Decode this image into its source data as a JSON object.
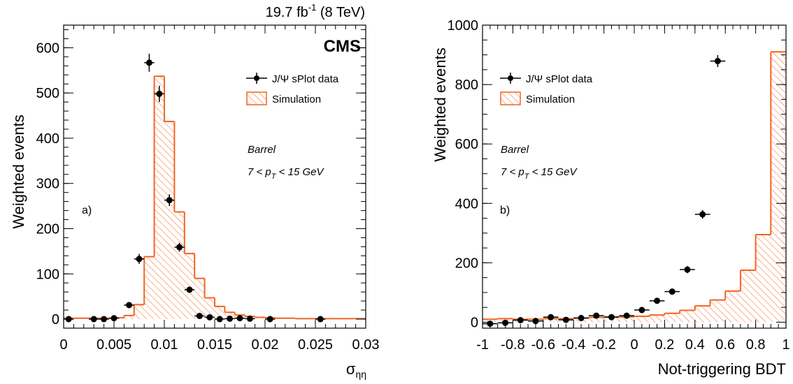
{
  "header": {
    "lumi_value": "19.7 fb",
    "lumi_exp": "-1",
    "lumi_energy": " (8 TeV)",
    "experiment": "CMS"
  },
  "colors": {
    "simulation": "#f26522",
    "data": "#000000"
  },
  "chart_data": [
    {
      "type": "histogram",
      "panel_label": "a)",
      "ylabel": "Weighted events",
      "xlabel_symbol": "σ",
      "xlabel_subscript": "ηη",
      "xlim": [
        0,
        0.03
      ],
      "ylim": [
        -20,
        650
      ],
      "xticks": [
        "0",
        "0.005",
        "0.01",
        "0.015",
        "0.02",
        "0.025",
        "0.03"
      ],
      "yticks": [
        "0",
        "100",
        "200",
        "300",
        "400",
        "500",
        "600"
      ],
      "grid": false,
      "legend_position": "top-right",
      "legend": {
        "data": "J/Ψ sPlot data",
        "simulation": "Simulation"
      },
      "annotations": {
        "region": "Barrel",
        "pt_range": "7 < p",
        "pt_sub": "T",
        "pt_rest": " < 15 GeV"
      },
      "simulation": {
        "bin_edges": [
          0,
          0.001,
          0.002,
          0.003,
          0.004,
          0.005,
          0.006,
          0.007,
          0.008,
          0.009,
          0.01,
          0.011,
          0.012,
          0.013,
          0.014,
          0.015,
          0.016,
          0.017,
          0.018,
          0.019,
          0.02,
          0.021,
          0.022,
          0.023,
          0.024,
          0.025,
          0.026,
          0.027,
          0.028,
          0.029,
          0.03
        ],
        "values": [
          2,
          2,
          2,
          2,
          2,
          3,
          8,
          32,
          138,
          537,
          437,
          237,
          145,
          90,
          47,
          28,
          15,
          9,
          6,
          4,
          3,
          2,
          2,
          1,
          1,
          1,
          1,
          1,
          1,
          1
        ]
      },
      "data_points": [
        {
          "x": 0.0005,
          "y": 0,
          "yerr": 4
        },
        {
          "x": 0.003,
          "y": 0,
          "yerr": 3
        },
        {
          "x": 0.004,
          "y": 0,
          "yerr": 3
        },
        {
          "x": 0.005,
          "y": 2,
          "yerr": 3
        },
        {
          "x": 0.0065,
          "y": 31,
          "yerr": 6
        },
        {
          "x": 0.0075,
          "y": 133,
          "yerr": 11
        },
        {
          "x": 0.0085,
          "y": 567,
          "yerr": 20
        },
        {
          "x": 0.0095,
          "y": 498,
          "yerr": 18
        },
        {
          "x": 0.0105,
          "y": 263,
          "yerr": 13
        },
        {
          "x": 0.0115,
          "y": 159,
          "yerr": 10
        },
        {
          "x": 0.0125,
          "y": 65,
          "yerr": 7
        },
        {
          "x": 0.0135,
          "y": 7,
          "yerr": 4
        },
        {
          "x": 0.0145,
          "y": 4,
          "yerr": 3
        },
        {
          "x": 0.0155,
          "y": 0,
          "yerr": 3
        },
        {
          "x": 0.0165,
          "y": 1,
          "yerr": 3
        },
        {
          "x": 0.0175,
          "y": 2,
          "yerr": 3
        },
        {
          "x": 0.0185,
          "y": 1,
          "yerr": 3
        },
        {
          "x": 0.0205,
          "y": 0,
          "yerr": 3
        },
        {
          "x": 0.0255,
          "y": 0,
          "yerr": 3
        }
      ]
    },
    {
      "type": "histogram",
      "panel_label": "b)",
      "ylabel": "Weighted events",
      "xlabel": "Not-triggering BDT",
      "xlim": [
        -1,
        1
      ],
      "ylim": [
        -20,
        1000
      ],
      "xticks": [
        "-1",
        "-0.8",
        "-0.6",
        "-0.4",
        "-0.2",
        "0",
        "0.2",
        "0.4",
        "0.6",
        "0.8",
        "1"
      ],
      "yticks": [
        "0",
        "200",
        "400",
        "600",
        "800",
        "1000"
      ],
      "grid": false,
      "legend_position": "top-left",
      "legend": {
        "data": "J/Ψ sPlot data",
        "simulation": "Simulation"
      },
      "annotations": {
        "region": "Barrel",
        "pt_range": "7 < p",
        "pt_sub": "T",
        "pt_rest": " < 15 GeV"
      },
      "simulation": {
        "bin_edges": [
          -1,
          -0.9,
          -0.8,
          -0.7,
          -0.6,
          -0.5,
          -0.4,
          -0.3,
          -0.2,
          -0.1,
          0,
          0.1,
          0.2,
          0.3,
          0.4,
          0.5,
          0.6,
          0.7,
          0.8,
          0.9,
          1
        ],
        "values": [
          10,
          12,
          10,
          10,
          12,
          12,
          14,
          16,
          18,
          18,
          20,
          24,
          30,
          40,
          55,
          75,
          105,
          175,
          295,
          910
        ]
      },
      "data_points": [
        {
          "x": -0.95,
          "y": -5,
          "yerr": 8
        },
        {
          "x": -0.85,
          "y": -2,
          "yerr": 7
        },
        {
          "x": -0.75,
          "y": 7,
          "yerr": 7
        },
        {
          "x": -0.65,
          "y": 4,
          "yerr": 7
        },
        {
          "x": -0.55,
          "y": 17,
          "yerr": 7
        },
        {
          "x": -0.45,
          "y": 8,
          "yerr": 7
        },
        {
          "x": -0.35,
          "y": 14,
          "yerr": 7
        },
        {
          "x": -0.25,
          "y": 22,
          "yerr": 7
        },
        {
          "x": -0.15,
          "y": 17,
          "yerr": 7
        },
        {
          "x": -0.05,
          "y": 22,
          "yerr": 7
        },
        {
          "x": 0.05,
          "y": 41,
          "yerr": 8
        },
        {
          "x": 0.15,
          "y": 72,
          "yerr": 9
        },
        {
          "x": 0.25,
          "y": 103,
          "yerr": 10
        },
        {
          "x": 0.35,
          "y": 177,
          "yerr": 12
        },
        {
          "x": 0.45,
          "y": 363,
          "yerr": 15
        },
        {
          "x": 0.55,
          "y": 879,
          "yerr": 20
        }
      ]
    }
  ]
}
